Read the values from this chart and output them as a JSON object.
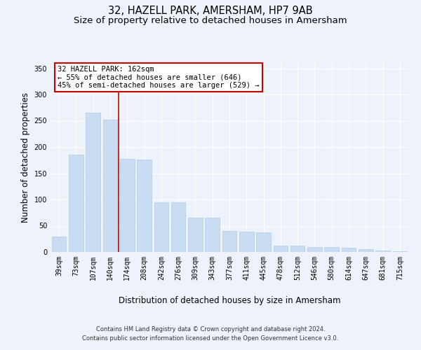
{
  "title": "32, HAZELL PARK, AMERSHAM, HP7 9AB",
  "subtitle": "Size of property relative to detached houses in Amersham",
  "xlabel": "Distribution of detached houses by size in Amersham",
  "ylabel": "Number of detached properties",
  "footer_line1": "Contains HM Land Registry data © Crown copyright and database right 2024.",
  "footer_line2": "Contains public sector information licensed under the Open Government Licence v3.0.",
  "categories": [
    "39sqm",
    "73sqm",
    "107sqm",
    "140sqm",
    "174sqm",
    "208sqm",
    "242sqm",
    "276sqm",
    "309sqm",
    "343sqm",
    "377sqm",
    "411sqm",
    "445sqm",
    "478sqm",
    "512sqm",
    "546sqm",
    "580sqm",
    "614sqm",
    "647sqm",
    "681sqm",
    "715sqm"
  ],
  "values": [
    30,
    185,
    265,
    252,
    177,
    176,
    95,
    95,
    65,
    65,
    40,
    39,
    38,
    12,
    12,
    10,
    9,
    8,
    5,
    3,
    2
  ],
  "bar_color": "#c9ddf2",
  "bar_edge_color": "#b0c8e8",
  "property_line_x": 3.5,
  "annotation_text": "32 HAZELL PARK: 162sqm\n← 55% of detached houses are smaller (646)\n45% of semi-detached houses are larger (529) →",
  "annotation_box_color": "#ffffff",
  "annotation_box_edge_color": "#cc0000",
  "property_line_color": "#cc0000",
  "ylim": [
    0,
    360
  ],
  "yticks": [
    0,
    50,
    100,
    150,
    200,
    250,
    300,
    350
  ],
  "bg_color": "#eef2fa",
  "axes_bg_color": "#eef2fa",
  "grid_color": "#ffffff",
  "title_fontsize": 10.5,
  "subtitle_fontsize": 9.5,
  "axis_label_fontsize": 8.5,
  "tick_fontsize": 7,
  "footer_fontsize": 6,
  "annotation_fontsize": 7.5
}
